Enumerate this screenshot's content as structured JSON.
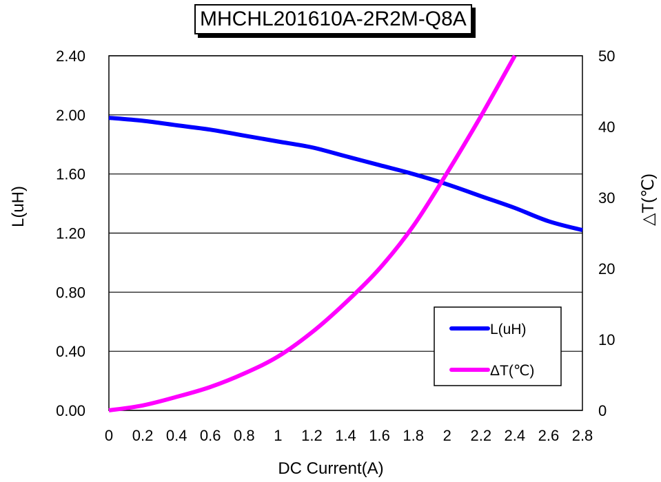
{
  "chart_data": {
    "type": "line",
    "title": "MHCHL201610A-2R2M-Q8A",
    "xlabel": "DC Current(A)",
    "ylabel": "L(uH)",
    "y2label": "△T(℃)",
    "xlim": [
      0,
      2.8
    ],
    "ylim": [
      0,
      2.4
    ],
    "y2lim": [
      0,
      50
    ],
    "x_ticks": [
      "0",
      "0.2",
      "0.4",
      "0.6",
      "0.8",
      "1",
      "1.2",
      "1.4",
      "1.6",
      "1.8",
      "2",
      "2.2",
      "2.4",
      "2.6",
      "2.8"
    ],
    "y_ticks": [
      "0.00",
      "0.40",
      "0.80",
      "1.20",
      "1.60",
      "2.00",
      "2.40"
    ],
    "y2_ticks": [
      "0",
      "10",
      "20",
      "30",
      "40",
      "50"
    ],
    "grid": "horizontal",
    "legend_position": "bottom-right",
    "series": [
      {
        "name": "L(uH)",
        "axis": "left",
        "color": "#0000ff",
        "x": [
          0,
          0.2,
          0.4,
          0.6,
          0.8,
          1.0,
          1.2,
          1.4,
          1.6,
          1.8,
          2.0,
          2.2,
          2.4,
          2.6,
          2.8
        ],
        "values": [
          1.98,
          1.96,
          1.93,
          1.9,
          1.86,
          1.82,
          1.78,
          1.72,
          1.66,
          1.6,
          1.53,
          1.45,
          1.37,
          1.28,
          1.22
        ]
      },
      {
        "name": "ΔT(℃)",
        "axis": "right",
        "color": "#ff00ff",
        "x": [
          0,
          0.2,
          0.4,
          0.6,
          0.8,
          1.0,
          1.2,
          1.4,
          1.6,
          1.8,
          2.0,
          2.2,
          2.4
        ],
        "values": [
          0,
          0.7,
          1.9,
          3.3,
          5.2,
          7.6,
          11.0,
          15.2,
          20.0,
          26.0,
          33.5,
          41.5,
          50.0
        ]
      }
    ]
  }
}
